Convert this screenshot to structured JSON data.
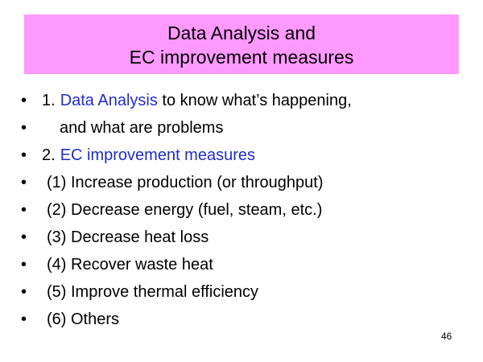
{
  "slide": {
    "title_line1": "Data Analysis and",
    "title_line2": "EC improvement measures",
    "page_number": "46",
    "colors": {
      "title_background": "#ff99ff",
      "highlight_text": "#1f2cc8",
      "body_text": "#000000"
    }
  },
  "bullet_glyph": "•",
  "bullets": [
    {
      "prefix": "1.",
      "highlight": "Data Analysis",
      "rest": " to know what’s happening,"
    },
    {
      "text": "and what are problems"
    },
    {
      "prefix": "2.",
      "highlight": "EC improvement measures"
    },
    {
      "text": "(1) Increase production (or throughput)"
    },
    {
      "text": "(2) Decrease energy (fuel, steam, etc.)"
    },
    {
      "text": "(3) Decrease heat loss"
    },
    {
      "text": "(4) Recover waste heat"
    },
    {
      "text": "(5) Improve thermal efficiency"
    },
    {
      "text": "(6) Others"
    }
  ]
}
